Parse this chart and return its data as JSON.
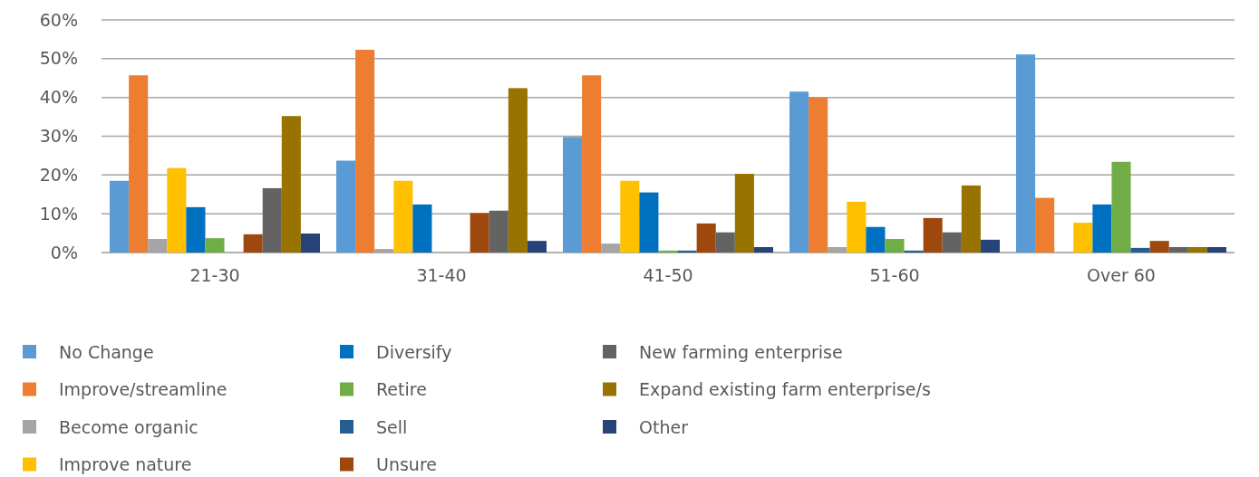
{
  "chart_data": {
    "type": "bar",
    "categories": [
      "21-30",
      "31-40",
      "41-50",
      "51-60",
      "Over 60"
    ],
    "ylim": [
      0,
      60
    ],
    "yticks": [
      {
        "value": 0,
        "label": "0%"
      },
      {
        "value": 10,
        "label": "10%"
      },
      {
        "value": 20,
        "label": "20%"
      },
      {
        "value": 30,
        "label": "30%"
      },
      {
        "value": 40,
        "label": "40%"
      },
      {
        "value": 50,
        "label": "50%"
      },
      {
        "value": 60,
        "label": "60%"
      }
    ],
    "grid": "y",
    "legend": "bottom",
    "series": [
      {
        "name": "No Change",
        "color": "#5b9bd5",
        "values": [
          18.5,
          23.7,
          29.8,
          41.5,
          51.1
        ]
      },
      {
        "name": "Improve/streamline",
        "color": "#ed7d31",
        "values": [
          45.7,
          52.3,
          45.7,
          40,
          14.1
        ]
      },
      {
        "name": "Become organic",
        "color": "#a5a5a5",
        "values": [
          3.5,
          0.9,
          2.3,
          1.4,
          0
        ]
      },
      {
        "name": "Improve nature",
        "color": "#ffc000",
        "values": [
          21.8,
          18.5,
          18.5,
          13.1,
          7.7
        ]
      },
      {
        "name": "Diversify",
        "color": "#0070c0",
        "values": [
          11.7,
          12.4,
          15.5,
          6.6,
          12.4
        ]
      },
      {
        "name": "Retire",
        "color": "#70ad47",
        "values": [
          3.7,
          0,
          0.5,
          3.5,
          23.4
        ]
      },
      {
        "name": "Sell",
        "color": "#255e91",
        "values": [
          0,
          0,
          0.5,
          0.5,
          1.2
        ]
      },
      {
        "name": "Unsure",
        "color": "#9e480e",
        "values": [
          4.7,
          10.2,
          7.5,
          8.9,
          3
        ]
      },
      {
        "name": "New farming enterprise",
        "color": "#636363",
        "values": [
          16.6,
          10.8,
          5.2,
          5.2,
          1.4
        ]
      },
      {
        "name": "Expand existing farm enterprise/s",
        "color": "#997300",
        "values": [
          35.2,
          42.4,
          20.3,
          17.3,
          1.4
        ]
      },
      {
        "name": "Other",
        "color": "#264478",
        "values": [
          4.9,
          3,
          1.4,
          3.3,
          1.4
        ]
      }
    ]
  }
}
